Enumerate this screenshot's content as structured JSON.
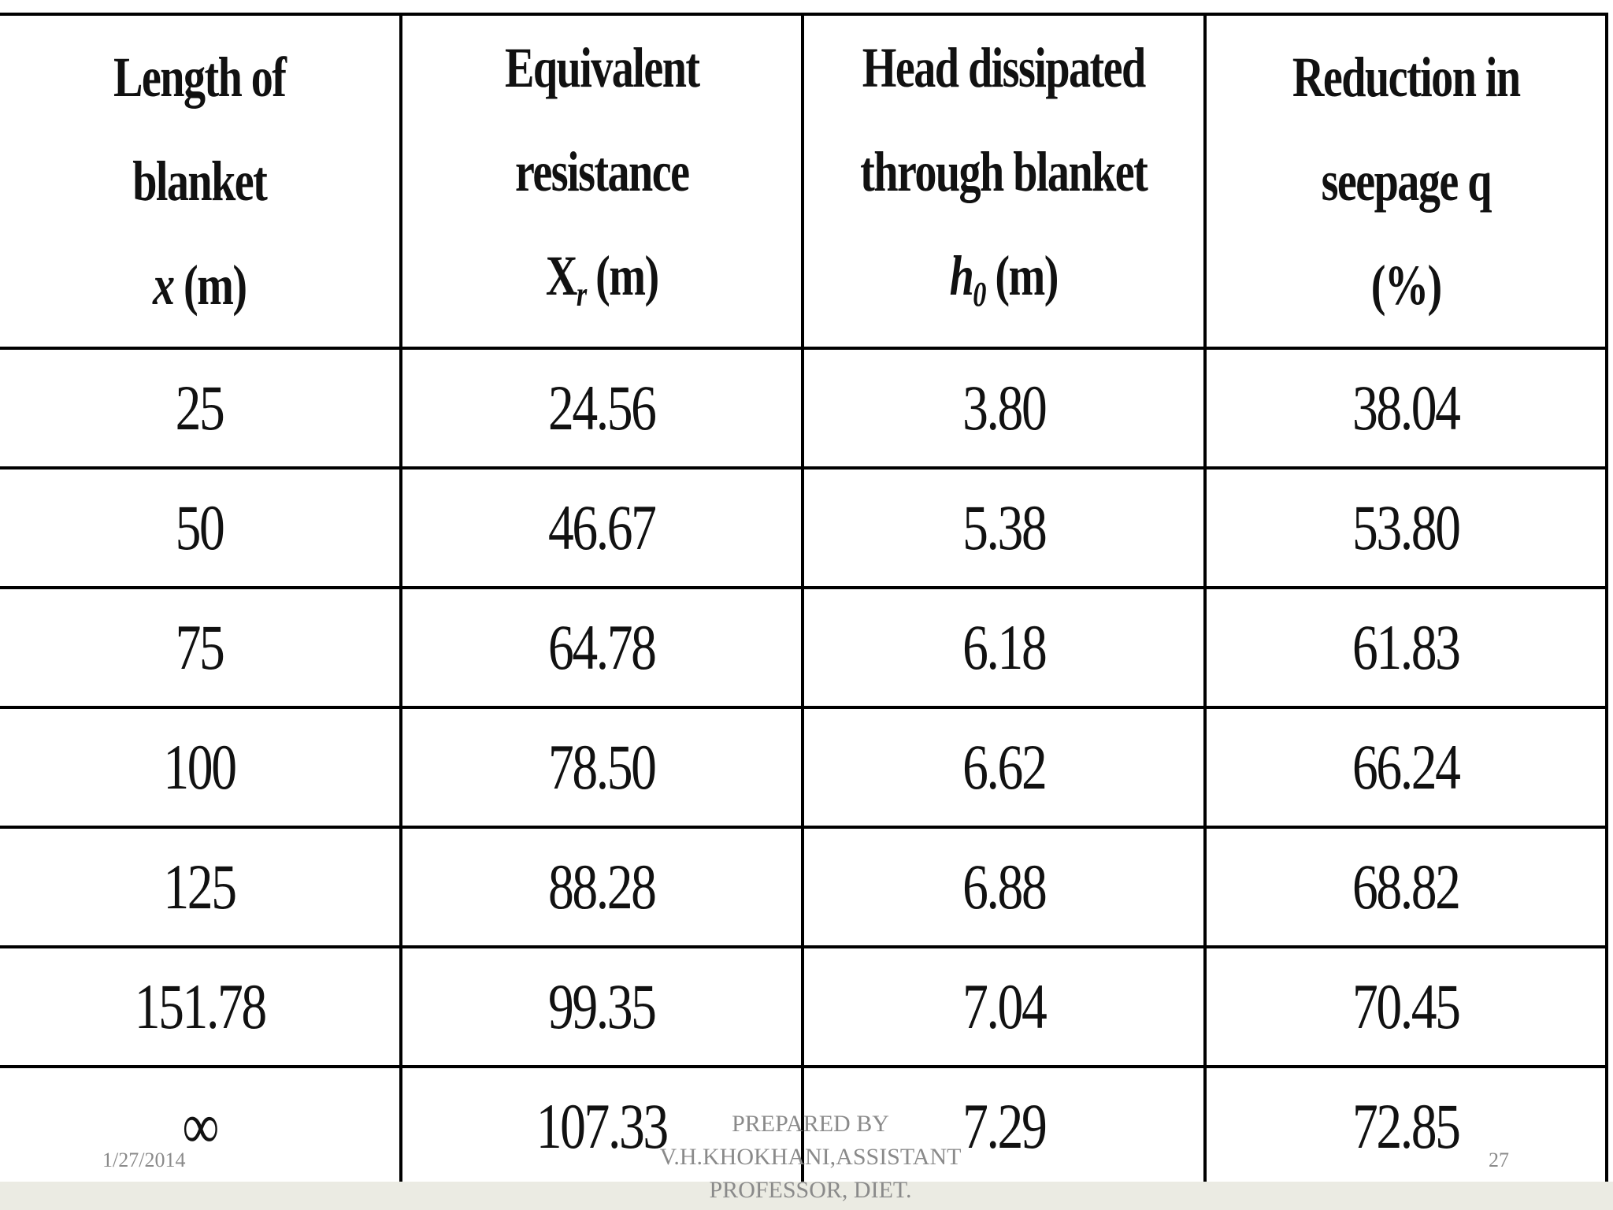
{
  "table": {
    "headers": [
      {
        "line1": "Length of",
        "line2": "blanket",
        "line3_sym": "x",
        "line3_sub": "",
        "line3_unit": "(m)"
      },
      {
        "line1": "Equivalent",
        "line2": "resistance",
        "line3_sym": "X",
        "line3_sub": "r",
        "line3_unit": "(m)"
      },
      {
        "line1": "Head dissipated",
        "line2": "through blanket",
        "line3_sym": "h",
        "line3_sub": "0",
        "line3_unit": "(m)"
      },
      {
        "line1": "Reduction in",
        "line2": "seepage q",
        "line3_sym": "",
        "line3_sub": "",
        "line3_unit": "(%)"
      }
    ],
    "rows": [
      [
        "25",
        "24.56",
        "3.80",
        "38.04"
      ],
      [
        "50",
        "46.67",
        "5.38",
        "53.80"
      ],
      [
        "75",
        "64.78",
        "6.18",
        "61.83"
      ],
      [
        "100",
        "78.50",
        "6.62",
        "66.24"
      ],
      [
        "125",
        "88.28",
        "6.88",
        "68.82"
      ],
      [
        "151.78",
        "99.35",
        "7.04",
        "70.45"
      ],
      [
        "∞",
        "107.33",
        "7.29",
        "72.85"
      ]
    ]
  },
  "footer": {
    "date": "1/27/2014",
    "prepared_by_line1": "PREPARED BY",
    "prepared_by_line2": "V.H.KHOKHANI,ASSISTANT",
    "prepared_by_line3": "PROFESSOR,  DIET.",
    "page_number": "27"
  }
}
